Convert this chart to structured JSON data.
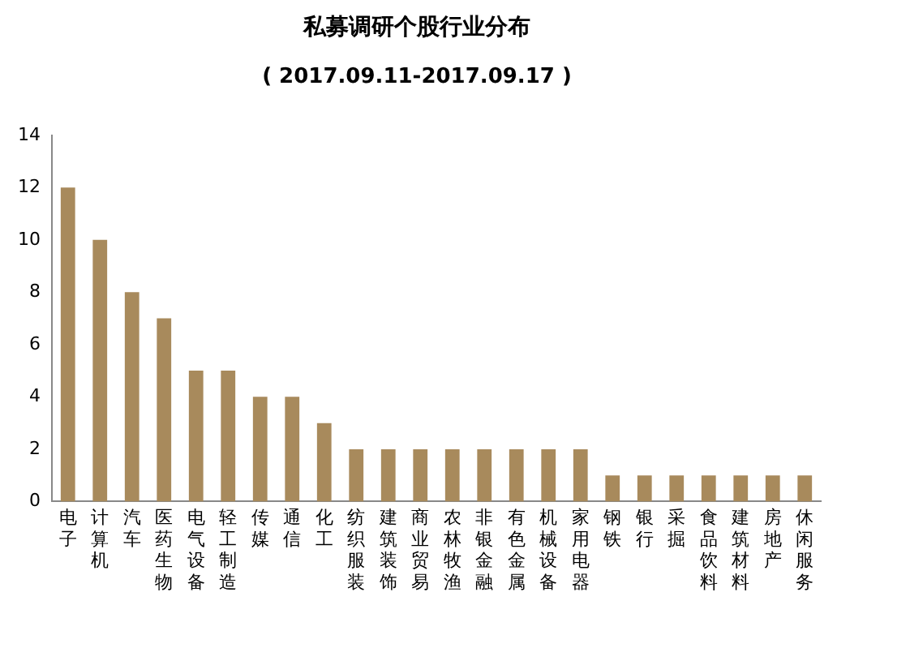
{
  "chart_data": {
    "type": "bar",
    "title": "私募调研个股行业分布",
    "subtitle": "( 2017.09.11-2017.09.17 )",
    "categories": [
      "电子",
      "计算机",
      "汽车",
      "医药生物",
      "电气设备",
      "轻工制造",
      "传媒",
      "通信",
      "化工",
      "纺织服装",
      "建筑装饰",
      "商业贸易",
      "农林牧渔",
      "非银金融",
      "有色金属",
      "机械设备",
      "家用电器",
      "钢铁",
      "银行",
      "采掘",
      "食品饮料",
      "建筑材料",
      "房地产",
      "休闲服务"
    ],
    "values": [
      12,
      10,
      8,
      7,
      5,
      5,
      4,
      4,
      3,
      2,
      2,
      2,
      2,
      2,
      2,
      2,
      2,
      1,
      1,
      1,
      1,
      1,
      1,
      1
    ],
    "color": "#a88a5c",
    "ylim": [
      0,
      14
    ],
    "yticks": [
      0,
      2,
      4,
      6,
      8,
      10,
      12,
      14
    ],
    "grid": false,
    "legend": false
  }
}
